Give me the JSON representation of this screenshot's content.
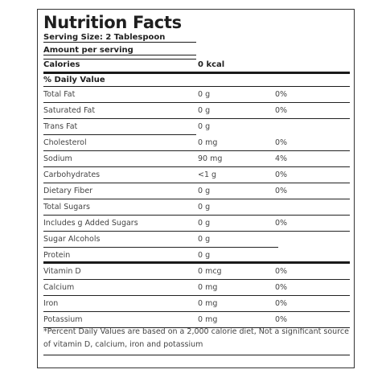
{
  "label": {
    "title": "Nutrition Facts",
    "serving_size": "Serving Size: 2 Tablespoon",
    "amount_per_serving": "Amount per serving",
    "calories_label": "Calories",
    "calories_value": "0 kcal",
    "daily_value_header": "% Daily Value",
    "nutrients": [
      {
        "name": "Total Fat",
        "amount": "0 g",
        "dv": "0%"
      },
      {
        "name": "Saturated Fat",
        "amount": "0 g",
        "dv": "0%"
      },
      {
        "name": "Trans Fat",
        "amount": "0 g",
        "dv": ""
      },
      {
        "name": "Cholesterol",
        "amount": "0 mg",
        "dv": "0%"
      },
      {
        "name": "Sodium",
        "amount": "90 mg",
        "dv": "4%"
      },
      {
        "name": "Carbohydrates",
        "amount": "<1 g",
        "dv": "0%"
      },
      {
        "name": "Dietary Fiber",
        "amount": "0 g",
        "dv": "0%"
      },
      {
        "name": "Total Sugars",
        "amount": "0 g",
        "dv": ""
      },
      {
        "name": "Includes g Added Sugars",
        "amount": "0 g",
        "dv": "0%"
      },
      {
        "name": "Sugar Alcohols",
        "amount": "0 g",
        "dv": ""
      },
      {
        "name": "Protein",
        "amount": "0 g",
        "dv": ""
      }
    ],
    "vitamins": [
      {
        "name": "Vitamin D",
        "amount": "0 mcg",
        "dv": "0%"
      },
      {
        "name": "Calcium",
        "amount": "0 mg",
        "dv": "0%"
      },
      {
        "name": "Iron",
        "amount": "0 mg",
        "dv": "0%"
      },
      {
        "name": "Potassium",
        "amount": "0 mg",
        "dv": "0%"
      }
    ],
    "footnote": "*Percent Daily Values are based on a 2,000 calorie diet, Not a significant source of vitamin D, calcium, iron and potassium"
  }
}
